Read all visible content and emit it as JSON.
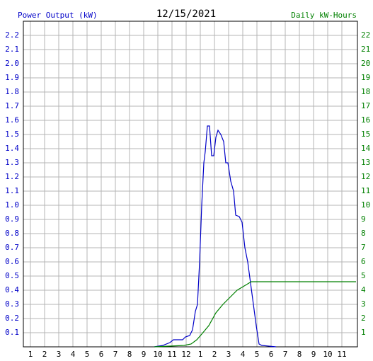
{
  "chart_data": {
    "type": "line",
    "title": "12/15/2021",
    "ylabel": "Power Output (kW)",
    "y2label": "Daily kW-Hours",
    "xlim": [
      0.5,
      24.1
    ],
    "xticks": [
      {
        "value": 1,
        "label": "1"
      },
      {
        "value": 2,
        "label": "2"
      },
      {
        "value": 3,
        "label": "3"
      },
      {
        "value": 4,
        "label": "4"
      },
      {
        "value": 5,
        "label": "5"
      },
      {
        "value": 6,
        "label": "6"
      },
      {
        "value": 7,
        "label": "7"
      },
      {
        "value": 8,
        "label": "8"
      },
      {
        "value": 9,
        "label": "9"
      },
      {
        "value": 10,
        "label": "10"
      },
      {
        "value": 11,
        "label": "11"
      },
      {
        "value": 12,
        "label": "12"
      },
      {
        "value": 13,
        "label": "1"
      },
      {
        "value": 14,
        "label": "2"
      },
      {
        "value": 15,
        "label": "3"
      },
      {
        "value": 16,
        "label": "4"
      },
      {
        "value": 17,
        "label": "5"
      },
      {
        "value": 18,
        "label": "6"
      },
      {
        "value": 19,
        "label": "7"
      },
      {
        "value": 20,
        "label": "8"
      },
      {
        "value": 21,
        "label": "9"
      },
      {
        "value": 22,
        "label": "10"
      },
      {
        "value": 23,
        "label": "11"
      }
    ],
    "ylim": [
      0,
      2.3
    ],
    "yticks": [
      0.1,
      0.2,
      0.3,
      0.4,
      0.5,
      0.6,
      0.7,
      0.8,
      0.9,
      {
        "value": 1,
        "label": "1.0"
      },
      1.1,
      1.2,
      1.3,
      1.4,
      1.5,
      1.6,
      1.7,
      1.8,
      1.9,
      {
        "value": 2,
        "label": "2.0"
      },
      2.1,
      2.2
    ],
    "y2lim": [
      0,
      23
    ],
    "y2ticks": [
      1,
      2,
      3,
      4,
      5,
      6,
      7,
      8,
      9,
      10,
      11,
      12,
      13,
      14,
      15,
      16,
      17,
      18,
      19,
      20,
      21,
      22
    ],
    "grid": true,
    "series": [
      {
        "name": "Power Output (kW)",
        "color": "#0000c8",
        "x": [
          9.75,
          10.35,
          10.85,
          11.1,
          11.35,
          11.75,
          11.95,
          12.25,
          12.45,
          12.65,
          12.8,
          12.95,
          13.1,
          13.25,
          13.35,
          13.5,
          13.65,
          13.8,
          13.95,
          14.1,
          14.25,
          14.45,
          14.65,
          14.8,
          14.95,
          15.15,
          15.35,
          15.5,
          15.75,
          15.95,
          16.15,
          16.35,
          16.55,
          16.75,
          16.95,
          17.15,
          17.35,
          18.35
        ],
        "values": [
          0,
          0.01,
          0.03,
          0.05,
          0.05,
          0.05,
          0.07,
          0.08,
          0.12,
          0.25,
          0.3,
          0.6,
          1.0,
          1.3,
          1.38,
          1.56,
          1.56,
          1.35,
          1.35,
          1.48,
          1.53,
          1.5,
          1.45,
          1.3,
          1.3,
          1.17,
          1.1,
          0.93,
          0.92,
          0.88,
          0.7,
          0.6,
          0.45,
          0.3,
          0.15,
          0.02,
          0.01,
          0
        ]
      },
      {
        "name": "Daily kW-Hours",
        "color": "#008000",
        "axis": "y2",
        "x": [
          9.75,
          11.85,
          12.35,
          12.75,
          13.1,
          13.6,
          14.1,
          14.6,
          15.1,
          15.6,
          16.1,
          16.6,
          24.0
        ],
        "values": [
          0,
          0.1,
          0.2,
          0.5,
          0.9,
          1.5,
          2.4,
          3.0,
          3.5,
          4.0,
          4.3,
          4.6,
          4.6
        ]
      }
    ]
  }
}
